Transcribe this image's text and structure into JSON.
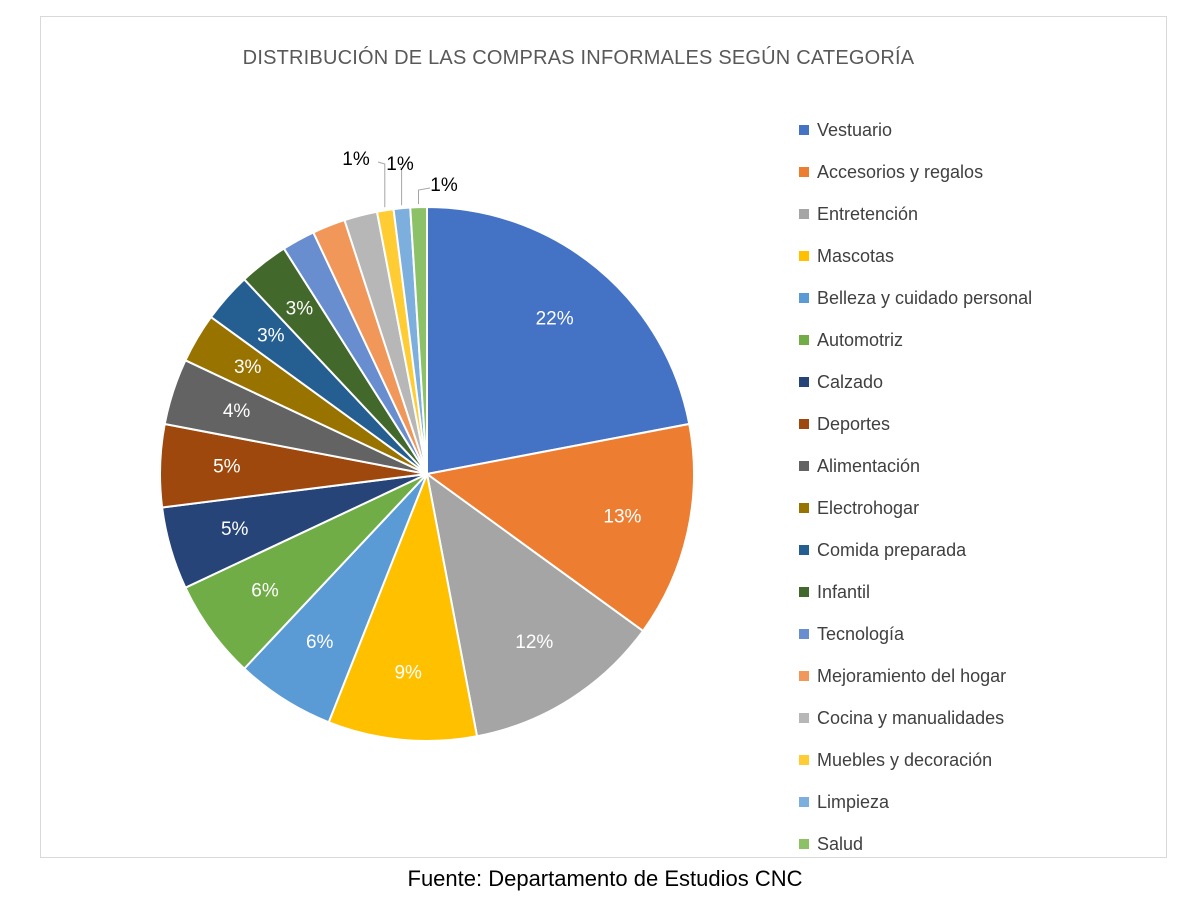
{
  "chart_data": {
    "type": "pie",
    "title": "DISTRIBUCIÓN DE LAS COMPRAS INFORMALES SEGÚN CATEGORÍA",
    "legend_position": "right",
    "start_angle": "12 o'clock, clockwise",
    "series": [
      {
        "slices": [
          {
            "label": "Vestuario",
            "value": 22,
            "data_label": "22%",
            "color": "#4472C4"
          },
          {
            "label": "Accesorios y regalos",
            "value": 13,
            "data_label": "13%",
            "color": "#ED7D31"
          },
          {
            "label": "Entretención",
            "value": 12,
            "data_label": "12%",
            "color": "#A5A5A5"
          },
          {
            "label": "Mascotas",
            "value": 9,
            "data_label": "9%",
            "color": "#FFC000"
          },
          {
            "label": "Belleza y cuidado personal",
            "value": 6,
            "data_label": "6%",
            "color": "#5B9BD5"
          },
          {
            "label": "Automotriz",
            "value": 6,
            "data_label": "6%",
            "color": "#70AD47"
          },
          {
            "label": "Calzado",
            "value": 5,
            "data_label": "5%",
            "color": "#264478"
          },
          {
            "label": "Deportes",
            "value": 5,
            "data_label": "5%",
            "color": "#9E480E"
          },
          {
            "label": "Alimentación",
            "value": 4,
            "data_label": "4%",
            "color": "#636363"
          },
          {
            "label": "Electrohogar",
            "value": 3,
            "data_label": "3%",
            "color": "#997300"
          },
          {
            "label": "Comida preparada",
            "value": 3,
            "data_label": "3%",
            "color": "#255E91"
          },
          {
            "label": "Infantil",
            "value": 3,
            "data_label": "3%",
            "color": "#43682B"
          },
          {
            "label": "Tecnología",
            "value": 2,
            "data_label": "",
            "color": "#698ED0"
          },
          {
            "label": "Mejoramiento del hogar",
            "value": 2,
            "data_label": "",
            "color": "#F1975A"
          },
          {
            "label": "Cocina y manualidades",
            "value": 2,
            "data_label": "",
            "color": "#B7B7B7"
          },
          {
            "label": "Muebles y decoración",
            "value": 1,
            "data_label": "1%",
            "color": "#FFCD33"
          },
          {
            "label": "Limpieza",
            "value": 1,
            "data_label": "1%",
            "color": "#7CAFDD"
          },
          {
            "label": "Salud",
            "value": 1,
            "data_label": "1%",
            "color": "#8CC168"
          }
        ]
      }
    ]
  },
  "source_note": "Fuente: Departamento de Estudios CNC"
}
